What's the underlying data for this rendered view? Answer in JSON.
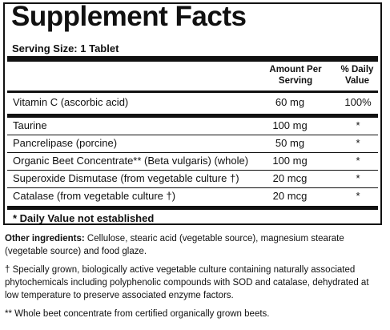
{
  "title": "Supplement Facts",
  "serving_size": "Serving Size: 1 Tablet",
  "columns": {
    "amount_per_serving": "Amount Per Serving",
    "daily_value": "% Daily Value"
  },
  "rows": [
    {
      "name": "Vitamin C (ascorbic acid)",
      "amount": "60 mg",
      "dv": "100%"
    },
    {
      "name": "Taurine",
      "amount": "100 mg",
      "dv": "*"
    },
    {
      "name": "Pancrelipase (porcine)",
      "amount": "50 mg",
      "dv": "*"
    },
    {
      "name": "Organic Beet Concentrate** (Beta vulgaris) (whole)",
      "amount": "100 mg",
      "dv": "*"
    },
    {
      "name": "Superoxide Dismutase (from vegetable culture †)",
      "amount": "20 mcg",
      "dv": "*"
    },
    {
      "name": "Catalase (from vegetable culture †)",
      "amount": "20 mcg",
      "dv": "*"
    }
  ],
  "footnote": "* Daily Value not established",
  "other_ingredients": {
    "label": "Other ingredients:",
    "text": "Cellulose, stearic acid (vegetable source), magnesium stearate (vegetable source) and food glaze."
  },
  "dagger_note": "† Specially grown, biologically active vegetable culture containing naturally associated phytochemicals including polyphenolic compounds with SOD and catalase, dehydrated at low temperature to preserve associated enzyme factors.",
  "whole_beet_note": "** Whole beet concentrate from certified organically grown beets."
}
